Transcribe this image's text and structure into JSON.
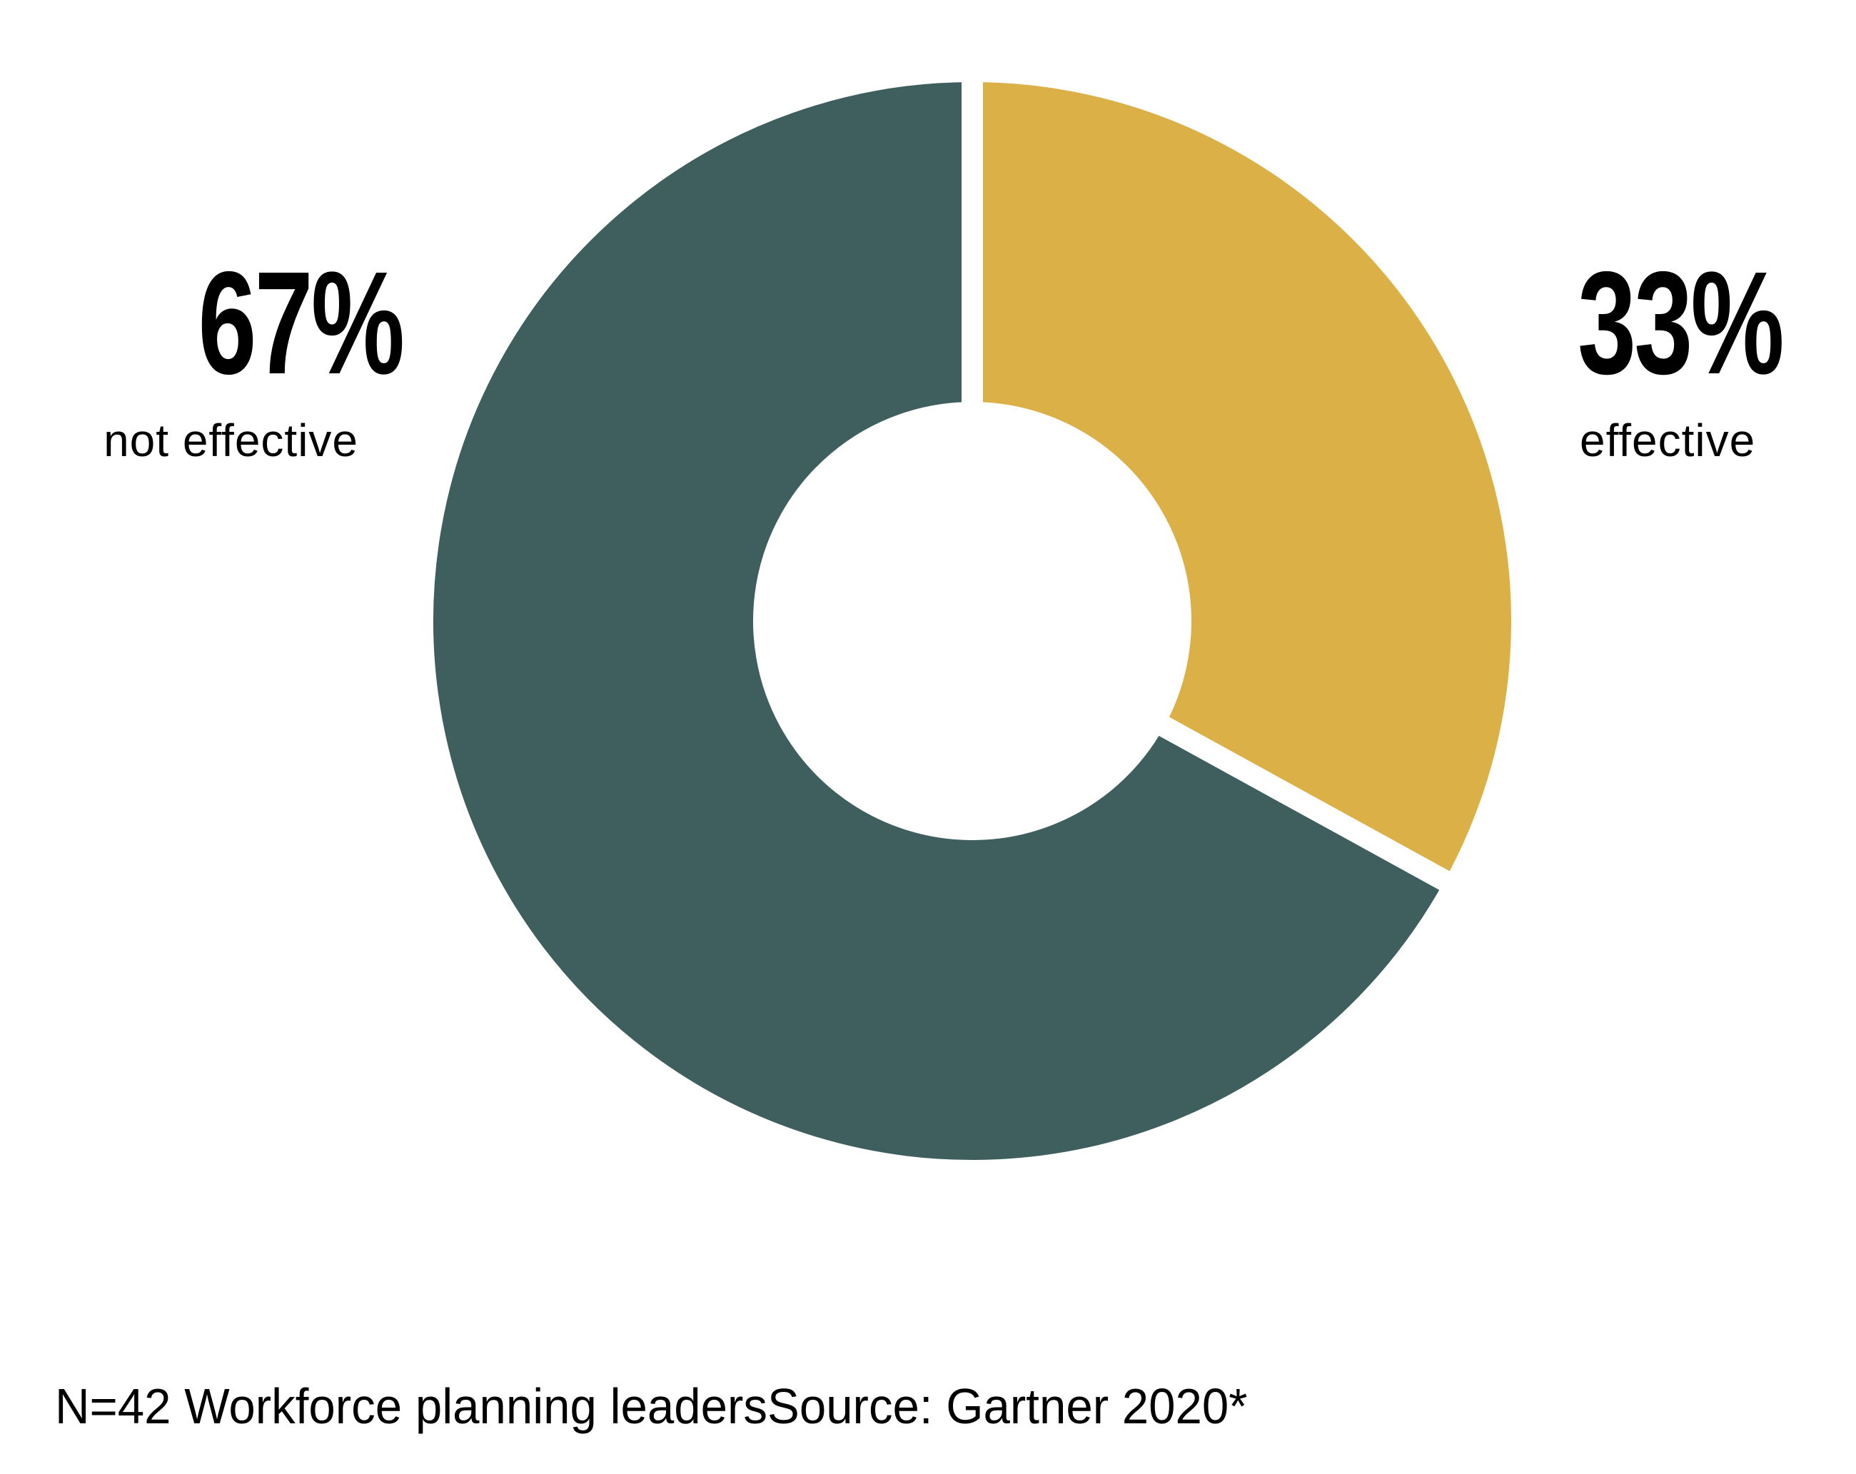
{
  "chart_data": {
    "type": "pie",
    "variant": "donut",
    "slices": [
      {
        "label": "effective",
        "value": 33,
        "display": "33%",
        "color": "#dbb047"
      },
      {
        "label": "not effective",
        "value": 67,
        "display": "67%",
        "color": "#3f5e5e"
      }
    ],
    "start": "top, clockwise",
    "footnote": "N=42 Workforce planning leadersSource: Gartner 2020*"
  }
}
